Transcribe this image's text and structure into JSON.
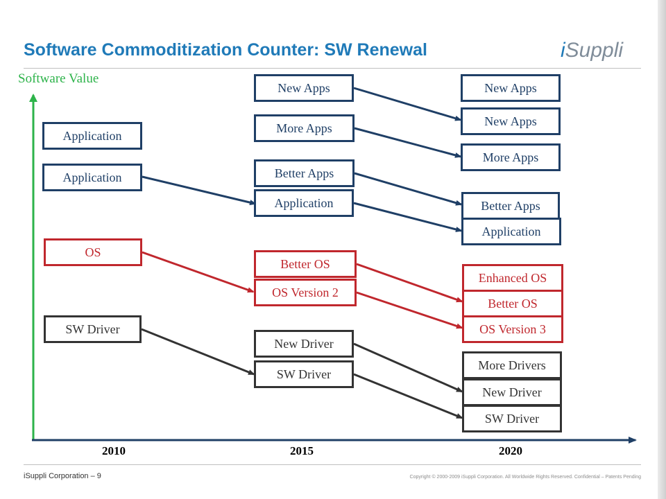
{
  "header": {
    "title": "Software Commoditization Counter: SW Renewal",
    "logo_prefix": "i",
    "logo_rest": "Suppli"
  },
  "axis": {
    "y_label": "Software Value",
    "years": [
      "2010",
      "2015",
      "2020"
    ]
  },
  "col2010": {
    "app1": "Application",
    "app2": "Application",
    "os": "OS",
    "driver": "SW Driver"
  },
  "col2015": {
    "new_apps": "New Apps",
    "more_apps": "More Apps",
    "better_apps": "Better Apps",
    "application": "Application",
    "better_os": "Better OS",
    "os_v2": "OS Version 2",
    "new_driver": "New Driver",
    "sw_driver": "SW Driver"
  },
  "col2020": {
    "new_apps1": "New Apps",
    "new_apps2": "New Apps",
    "more_apps": "More Apps",
    "better_apps": "Better Apps",
    "application": "Application",
    "enhanced_os": "Enhanced OS",
    "better_os": "Better OS",
    "os_v3": "OS Version 3",
    "more_drivers": "More Drivers",
    "new_driver": "New Driver",
    "sw_driver": "SW Driver"
  },
  "footer": {
    "left": "iSuppli Corporation – 9",
    "right": "Copyright © 2000-2009 iSuppli Corporation. All Worldwide Rights Reserved. Confidential – Patents Pending"
  },
  "colors": {
    "app": "#1f3f66",
    "os": "#c0272d",
    "driver": "#333333",
    "axis_y": "#2db34a",
    "axis_x": "#1f3f66",
    "title": "#1f7ab8"
  }
}
